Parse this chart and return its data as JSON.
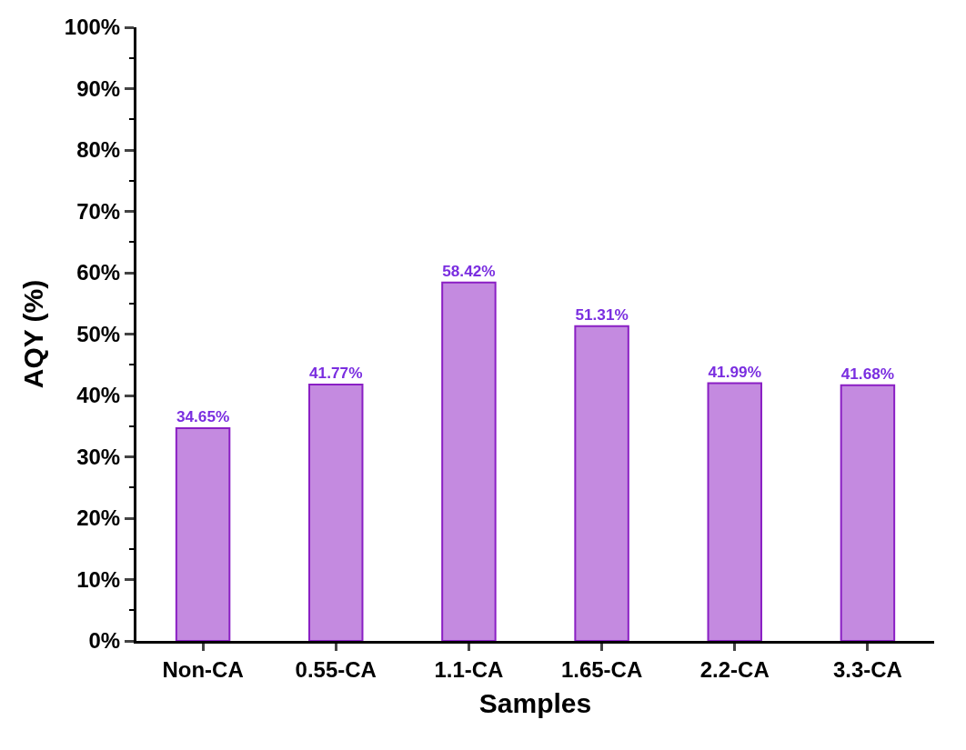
{
  "chart_data": {
    "type": "bar",
    "xlabel": "Samples",
    "ylabel": "AQY (%)",
    "categories": [
      "Non-CA",
      "0.55-CA",
      "1.1-CA",
      "1.65-CA",
      "2.2-CA",
      "3.3-CA"
    ],
    "values": [
      34.65,
      41.77,
      58.42,
      51.31,
      41.99,
      41.68
    ],
    "value_labels": [
      "34.65%",
      "41.77%",
      "58.42%",
      "51.31%",
      "41.99%",
      "41.68%"
    ],
    "color": "#c48ae0",
    "legend": false,
    "ylim": [
      0,
      100
    ],
    "yticks": [
      {
        "value": 0,
        "label": "0%"
      },
      {
        "value": 10,
        "label": "10%"
      },
      {
        "value": 20,
        "label": "20%"
      },
      {
        "value": 30,
        "label": "30%"
      },
      {
        "value": 40,
        "label": "40%"
      },
      {
        "value": 50,
        "label": "50%"
      },
      {
        "value": 60,
        "label": "60%"
      },
      {
        "value": 70,
        "label": "70%"
      },
      {
        "value": 80,
        "label": "80%"
      },
      {
        "value": 90,
        "label": "90%"
      },
      {
        "value": 100,
        "label": "100%"
      }
    ]
  }
}
